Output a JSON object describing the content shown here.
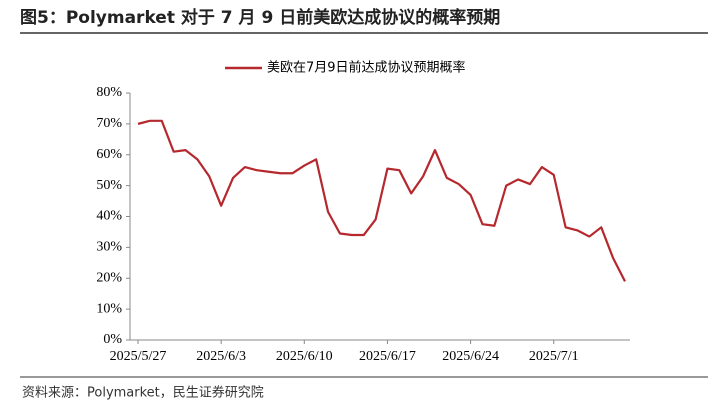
{
  "chart_data": {
    "type": "line",
    "title": "图5：Polymarket 对于 7 月 9 日前美欧达成协议的概率预期",
    "source": "资料来源：Polymarket，民生证券研究院",
    "categories": [
      "2025/5/27",
      null,
      null,
      null,
      null,
      null,
      null,
      "2025/6/3",
      null,
      null,
      null,
      null,
      null,
      null,
      "2025/6/10",
      null,
      null,
      null,
      null,
      null,
      null,
      "2025/6/17",
      null,
      null,
      null,
      null,
      null,
      null,
      "2025/6/24",
      null,
      null,
      null,
      null,
      null,
      null,
      "2025/7/1",
      null,
      null,
      null,
      null,
      null,
      null
    ],
    "series": [
      {
        "name": "美欧在7月9日前达成协议预期概率",
        "color": "#b5282d",
        "values": [
          70,
          71,
          71,
          61,
          61.5,
          58.5,
          53,
          43.5,
          52.5,
          56,
          55,
          54.5,
          54,
          54,
          56.5,
          58.5,
          41.5,
          34.5,
          34,
          34,
          39,
          55.5,
          55,
          47.5,
          53,
          61.5,
          52.5,
          50.5,
          47,
          37.5,
          37,
          50,
          52,
          50.5,
          56,
          53.5,
          36.5,
          35.5,
          33.5,
          36.5,
          26.5,
          19
        ]
      }
    ],
    "ylim": [
      0,
      80
    ],
    "yticks": [
      {
        "value": 0,
        "label": "0%"
      },
      {
        "value": 10,
        "label": "10%"
      },
      {
        "value": 20,
        "label": "20%"
      },
      {
        "value": 30,
        "label": "30%"
      },
      {
        "value": 40,
        "label": "40%"
      },
      {
        "value": 50,
        "label": "50%"
      },
      {
        "value": 60,
        "label": "60%"
      },
      {
        "value": 70,
        "label": "70%"
      },
      {
        "value": 80,
        "label": "80%"
      }
    ],
    "grid": false,
    "legend": "top"
  }
}
